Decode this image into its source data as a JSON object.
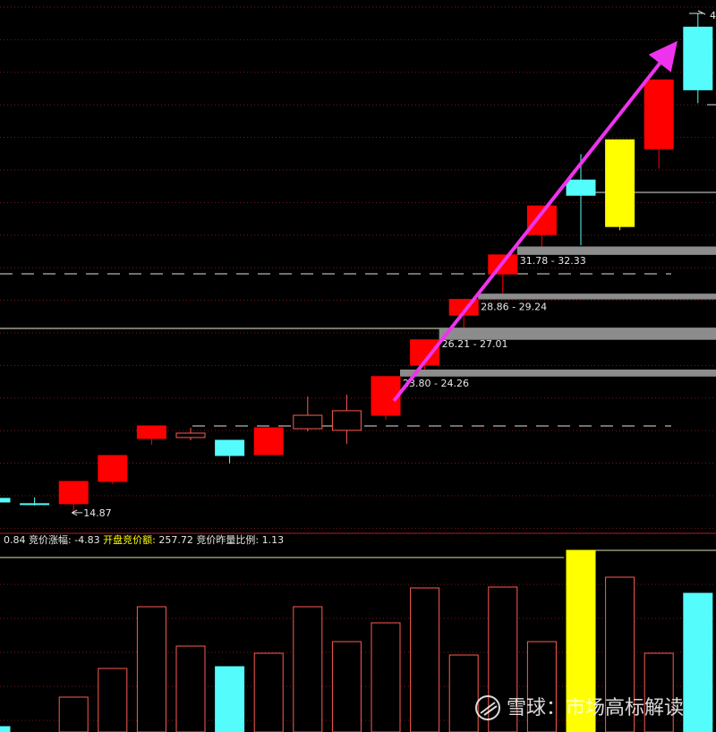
{
  "chart_data": {
    "type": "candlestick",
    "ylim": [
      13.75,
      48.5
    ],
    "open": [
      15.81,
      15.46,
      15.46,
      16.92,
      19.74,
      19.8,
      19.62,
      18.68,
      20.38,
      20.27,
      21.26,
      24.55,
      27.83,
      30.53,
      33.11,
      36.69,
      33.64,
      38.74,
      46.72
    ],
    "high": [
      15.81,
      15.87,
      16.92,
      18.62,
      20.56,
      20.44,
      19.62,
      20.44,
      22.49,
      22.61,
      23.8,
      26.21,
      28.86,
      31.78,
      34.99,
      38.39,
      39.33,
      43.26,
      47.6
    ],
    "low": [
      15.57,
      15.34,
      14.87,
      16.75,
      19.33,
      19.62,
      18.1,
      18.68,
      20.21,
      19.39,
      20.97,
      24.26,
      27.01,
      29.24,
      32.33,
      32.41,
      33.4,
      37.45,
      41.73
    ],
    "close": [
      15.57,
      15.4,
      16.92,
      18.62,
      20.56,
      20.09,
      18.62,
      20.44,
      21.26,
      21.56,
      23.8,
      26.21,
      28.86,
      31.78,
      34.99,
      35.69,
      39.33,
      43.26,
      42.61
    ],
    "colors": [
      "#54fcfc",
      "#54fcfc",
      "#ff0000",
      "#ff0000",
      "#ff0000",
      "none",
      "#54fcfc",
      "#ff0000",
      "none",
      "none",
      "#ff0000",
      "#ff0000",
      "#ff0000",
      "#ff0000",
      "#ff0000",
      "#54fcfc",
      "#ffff00",
      "#ff0000",
      "#54fcfc"
    ],
    "outline_color": "#ff5a50",
    "gaps": [
      {
        "label": "23.80 - 24.26",
        "low": 23.8,
        "high": 24.26
      },
      {
        "label": "26.21 - 27.01",
        "low": 26.21,
        "high": 27.01
      },
      {
        "label": "28.86 - 29.24",
        "low": 28.86,
        "high": 29.24
      },
      {
        "label": "31.78 - 32.33",
        "low": 31.78,
        "high": 32.33
      }
    ],
    "gap_color": "#8c8c8c",
    "low_marker": 14.87,
    "high_label": "4",
    "stats": {
      "prefix": 0.84,
      "items": [
        {
          "label": "竞价涨幅:",
          "value": -4.83,
          "color": "#e8e8e8"
        },
        {
          "label": "开盘竞价额:",
          "value": 257.72,
          "color": "#ffff00"
        },
        {
          "label": "竞价昨量比例:",
          "value": 1.13,
          "color": "#e8e8e8"
        }
      ]
    },
    "volume": [
      6,
      null,
      39,
      71,
      140,
      96,
      73,
      88,
      140,
      101,
      122,
      161,
      86,
      162,
      101,
      203,
      173,
      88,
      155
    ],
    "volume_colors": [
      "#54fcfc",
      "none",
      "none",
      "none",
      "none",
      "none",
      "#54fcfc",
      "none",
      "none",
      "none",
      "none",
      "none",
      "none",
      "none",
      "none",
      "#ffff00",
      "none",
      "none",
      "#54fcfc"
    ],
    "volume_ylim": [
      0,
      221
    ],
    "watermark": "雪球：市场高标解读"
  }
}
